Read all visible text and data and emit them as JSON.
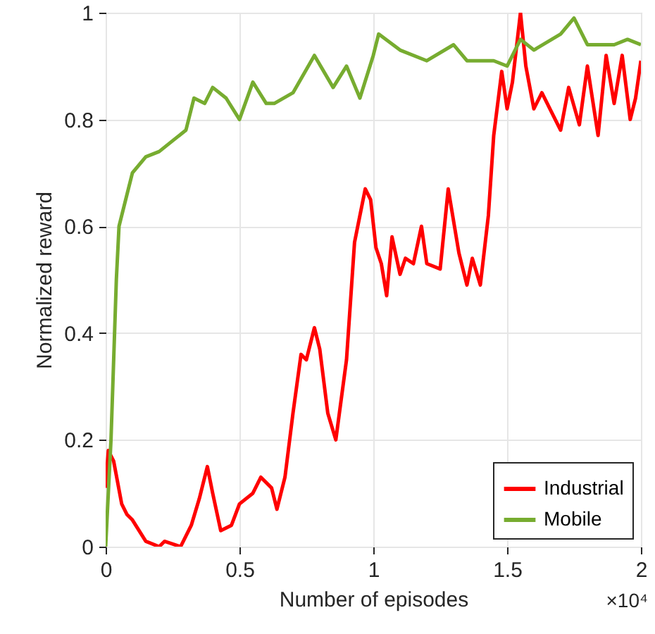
{
  "chart_data": {
    "type": "line",
    "xlabel": "Number of episodes",
    "ylabel": "Normalized reward",
    "annotations": [
      "×10⁴"
    ],
    "xlim": [
      0,
      2
    ],
    "xticks": [
      0,
      0.5,
      1,
      1.5,
      2
    ],
    "ylim": [
      0,
      1
    ],
    "yticks": [
      0,
      0.2,
      0.4,
      0.6,
      0.8,
      1
    ],
    "grid": true,
    "legend": "bottom right",
    "line_style": "solid",
    "marker": "none",
    "series": [
      {
        "name": "Industrial",
        "color": "#ff0000",
        "x": [
          0,
          0.01,
          0.03,
          0.06,
          0.08,
          0.1,
          0.15,
          0.2,
          0.22,
          0.28,
          0.32,
          0.35,
          0.38,
          0.4,
          0.43,
          0.47,
          0.5,
          0.55,
          0.58,
          0.62,
          0.64,
          0.67,
          0.7,
          0.73,
          0.75,
          0.78,
          0.8,
          0.83,
          0.86,
          0.9,
          0.93,
          0.97,
          0.99,
          1.01,
          1.03,
          1.05,
          1.07,
          1.1,
          1.12,
          1.15,
          1.18,
          1.2,
          1.25,
          1.28,
          1.32,
          1.35,
          1.37,
          1.4,
          1.43,
          1.45,
          1.48,
          1.5,
          1.52,
          1.55,
          1.57,
          1.6,
          1.63,
          1.67,
          1.7,
          1.73,
          1.77,
          1.8,
          1.84,
          1.87,
          1.9,
          1.93,
          1.96,
          1.98,
          2.0
        ],
        "values": [
          0.11,
          0.18,
          0.16,
          0.08,
          0.06,
          0.05,
          0.01,
          0.0,
          0.01,
          0.0,
          0.04,
          0.09,
          0.15,
          0.1,
          0.03,
          0.04,
          0.08,
          0.1,
          0.13,
          0.11,
          0.07,
          0.13,
          0.25,
          0.36,
          0.35,
          0.41,
          0.37,
          0.25,
          0.2,
          0.35,
          0.57,
          0.67,
          0.65,
          0.56,
          0.53,
          0.47,
          0.58,
          0.51,
          0.54,
          0.53,
          0.6,
          0.53,
          0.52,
          0.67,
          0.55,
          0.49,
          0.54,
          0.49,
          0.62,
          0.77,
          0.89,
          0.82,
          0.87,
          1.0,
          0.9,
          0.82,
          0.85,
          0.81,
          0.78,
          0.86,
          0.79,
          0.9,
          0.77,
          0.92,
          0.83,
          0.92,
          0.8,
          0.84,
          0.91
        ]
      },
      {
        "name": "Mobile",
        "color": "#77ac30",
        "x": [
          0,
          0.02,
          0.04,
          0.05,
          0.08,
          0.1,
          0.15,
          0.2,
          0.25,
          0.3,
          0.33,
          0.37,
          0.4,
          0.45,
          0.5,
          0.55,
          0.6,
          0.63,
          0.7,
          0.78,
          0.85,
          0.9,
          0.95,
          1.0,
          1.02,
          1.1,
          1.2,
          1.3,
          1.35,
          1.45,
          1.5,
          1.55,
          1.6,
          1.7,
          1.75,
          1.8,
          1.9,
          1.95,
          2.0
        ],
        "values": [
          0,
          0.2,
          0.5,
          0.6,
          0.66,
          0.7,
          0.73,
          0.74,
          0.76,
          0.78,
          0.84,
          0.83,
          0.86,
          0.84,
          0.8,
          0.87,
          0.83,
          0.83,
          0.85,
          0.92,
          0.86,
          0.9,
          0.84,
          0.92,
          0.96,
          0.93,
          0.91,
          0.94,
          0.91,
          0.91,
          0.9,
          0.95,
          0.93,
          0.96,
          0.99,
          0.94,
          0.94,
          0.95,
          0.94
        ]
      }
    ]
  }
}
